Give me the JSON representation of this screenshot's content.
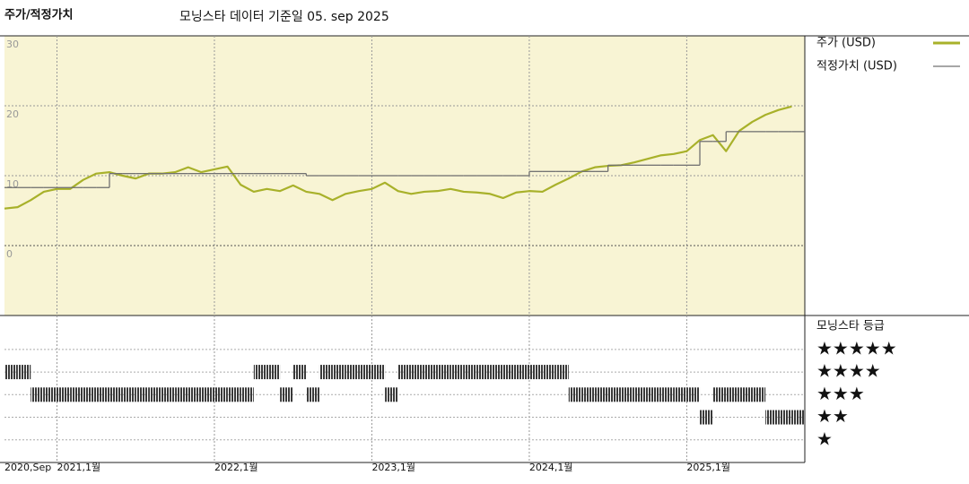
{
  "chart_data": [
    {
      "type": "line",
      "title": "주가/적정가치",
      "subtitle": "모닝스타 데이터 기준일 05. sep 2025",
      "x": [
        "2020-09",
        "2020-10",
        "2020-11",
        "2020-12",
        "2021-01",
        "2021-02",
        "2021-03",
        "2021-04",
        "2021-05",
        "2021-06",
        "2021-07",
        "2021-08",
        "2021-09",
        "2021-10",
        "2021-11",
        "2021-12",
        "2022-01",
        "2022-02",
        "2022-03",
        "2022-04",
        "2022-05",
        "2022-06",
        "2022-07",
        "2022-08",
        "2022-09",
        "2022-10",
        "2022-11",
        "2022-12",
        "2023-01",
        "2023-02",
        "2023-03",
        "2023-04",
        "2023-05",
        "2023-06",
        "2023-07",
        "2023-08",
        "2023-09",
        "2023-10",
        "2023-11",
        "2023-12",
        "2024-01",
        "2024-02",
        "2024-03",
        "2024-04",
        "2024-05",
        "2024-06",
        "2024-07",
        "2024-08",
        "2024-09",
        "2024-10",
        "2024-11",
        "2024-12",
        "2025-01",
        "2025-02",
        "2025-03",
        "2025-04",
        "2025-05",
        "2025-06",
        "2025-07",
        "2025-08",
        "2025-09"
      ],
      "series": [
        {
          "name": "주가 (USD)",
          "color": "#a8b12a",
          "values": [
            5.3,
            5.5,
            6.5,
            7.7,
            8.1,
            8.1,
            9.4,
            10.3,
            10.5,
            10.0,
            9.6,
            10.3,
            10.3,
            10.5,
            11.2,
            10.5,
            10.9,
            11.3,
            8.7,
            7.7,
            8.1,
            7.8,
            8.6,
            7.7,
            7.4,
            6.5,
            7.4,
            7.8,
            8.1,
            9.0,
            7.8,
            7.4,
            7.7,
            7.8,
            8.1,
            7.7,
            7.6,
            7.4,
            6.8,
            7.6,
            7.8,
            7.7,
            8.7,
            9.6,
            10.6,
            11.2,
            11.4,
            11.5,
            11.9,
            12.4,
            12.9,
            13.1,
            13.5,
            15.1,
            15.8,
            13.5,
            16.4,
            17.7,
            18.7,
            19.4,
            19.9
          ]
        },
        {
          "name": "적정가치 (USD)",
          "color": "#707070",
          "values": [
            8.3,
            8.3,
            8.3,
            8.3,
            8.3,
            8.3,
            8.3,
            8.3,
            10.3,
            10.3,
            10.3,
            10.3,
            10.3,
            10.3,
            10.3,
            10.3,
            10.3,
            10.3,
            10.3,
            10.3,
            10.3,
            10.3,
            10.3,
            10.0,
            10.0,
            10.0,
            10.0,
            10.0,
            10.0,
            10.0,
            10.0,
            10.0,
            10.0,
            10.0,
            10.0,
            10.0,
            10.0,
            10.0,
            10.0,
            10.0,
            10.6,
            10.6,
            10.6,
            10.6,
            10.6,
            10.6,
            11.5,
            11.5,
            11.5,
            11.5,
            11.5,
            11.5,
            11.5,
            14.9,
            14.9,
            16.3,
            16.3,
            16.3,
            16.3,
            16.3,
            16.3
          ]
        }
      ],
      "xlim": [
        "2020-09",
        "2025-10"
      ],
      "xticks": [
        {
          "value": "2020-09",
          "label": "2020,Sep"
        },
        {
          "value": "2021-01",
          "label": "2021,1월"
        },
        {
          "value": "2022-01",
          "label": "2022,1월"
        },
        {
          "value": "2023-01",
          "label": "2023,1월"
        },
        {
          "value": "2024-01",
          "label": "2024,1월"
        },
        {
          "value": "2025-01",
          "label": "2025,1월"
        }
      ],
      "ylim": [
        -10,
        30
      ],
      "yticks": [
        0,
        10,
        20,
        30
      ],
      "grid": true
    },
    {
      "type": "rating",
      "title": "모닝스타 등급",
      "color": "#333333",
      "x": [
        "2020-09",
        "2020-10",
        "2020-11",
        "2020-12",
        "2021-01",
        "2021-02",
        "2021-03",
        "2021-04",
        "2021-05",
        "2021-06",
        "2021-07",
        "2021-08",
        "2021-09",
        "2021-10",
        "2021-11",
        "2021-12",
        "2022-01",
        "2022-02",
        "2022-03",
        "2022-04",
        "2022-05",
        "2022-06",
        "2022-07",
        "2022-08",
        "2022-09",
        "2022-10",
        "2022-11",
        "2022-12",
        "2023-01",
        "2023-02",
        "2023-03",
        "2023-04",
        "2023-05",
        "2023-06",
        "2023-07",
        "2023-08",
        "2023-09",
        "2023-10",
        "2023-11",
        "2023-12",
        "2024-01",
        "2024-02",
        "2024-03",
        "2024-04",
        "2024-05",
        "2024-06",
        "2024-07",
        "2024-08",
        "2024-09",
        "2024-10",
        "2024-11",
        "2024-12",
        "2025-01",
        "2025-02",
        "2025-03",
        "2025-04",
        "2025-05",
        "2025-06",
        "2025-07",
        "2025-08",
        "2025-09"
      ],
      "values": [
        4,
        4,
        3,
        3,
        3,
        3,
        3,
        3,
        3,
        3,
        3,
        3,
        3,
        3,
        3,
        3,
        3,
        3,
        3,
        4,
        4,
        3,
        4,
        3,
        4,
        4,
        4,
        4,
        4,
        3,
        4,
        4,
        4,
        4,
        4,
        4,
        4,
        4,
        4,
        4,
        4,
        4,
        4,
        3,
        3,
        3,
        3,
        3,
        3,
        3,
        3,
        3,
        3,
        2,
        3,
        3,
        3,
        3,
        2,
        2,
        2
      ],
      "ylim": [
        0,
        6.5
      ],
      "yticks": [
        {
          "value": 5,
          "label": "★★★★★"
        },
        {
          "value": 4,
          "label": "★★★★"
        },
        {
          "value": 3,
          "label": "★★★"
        },
        {
          "value": 2,
          "label": "★★"
        },
        {
          "value": 1,
          "label": "★"
        }
      ]
    }
  ]
}
